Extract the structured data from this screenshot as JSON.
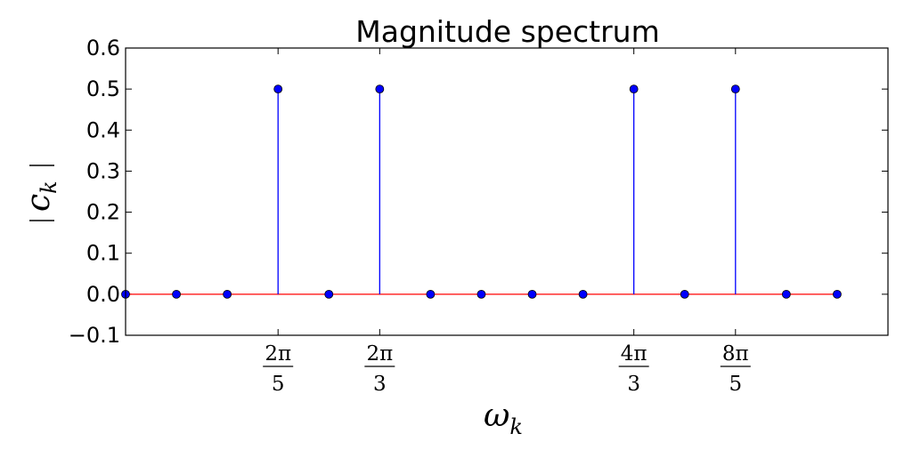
{
  "chart_data": {
    "type": "stem",
    "title": "Magnitude spectrum",
    "xlabel": {
      "base": "ω",
      "sub": "k"
    },
    "ylabel": {
      "base": "c",
      "sub": "k"
    },
    "xlim": [
      0,
      7.5
    ],
    "ylim": [
      -0.1,
      0.6
    ],
    "yticks": [
      -0.1,
      0.0,
      0.1,
      0.2,
      0.3,
      0.4,
      0.5,
      0.6
    ],
    "ytick_labels": [
      "−0.1",
      "0.0",
      "0.1",
      "0.2",
      "0.3",
      "0.4",
      "0.5",
      "0.6"
    ],
    "xticks": [
      {
        "value": 1.5,
        "num": "2π",
        "den": "5"
      },
      {
        "value": 2.5,
        "num": "2π",
        "den": "3"
      },
      {
        "value": 5.0,
        "num": "4π",
        "den": "3"
      },
      {
        "value": 6.0,
        "num": "8π",
        "den": "5"
      }
    ],
    "x": [
      0,
      0.5,
      1.0,
      1.5,
      2.0,
      2.5,
      3.0,
      3.5,
      4.0,
      4.5,
      5.0,
      5.5,
      6.0,
      6.5,
      7.0
    ],
    "values": [
      0,
      0,
      0,
      0.5,
      0,
      0.5,
      0,
      0,
      0,
      0,
      0.5,
      0,
      0.5,
      0,
      0
    ],
    "marker_color": "#0000ff",
    "stem_color": "#0000ff",
    "baseline_color": "#ff0000",
    "grid": false
  }
}
